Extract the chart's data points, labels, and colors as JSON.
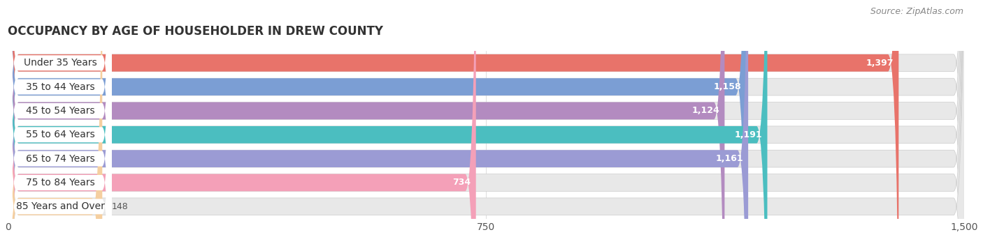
{
  "title": "OCCUPANCY BY AGE OF HOUSEHOLDER IN DREW COUNTY",
  "source": "Source: ZipAtlas.com",
  "categories": [
    "Under 35 Years",
    "35 to 44 Years",
    "45 to 54 Years",
    "55 to 64 Years",
    "65 to 74 Years",
    "75 to 84 Years",
    "85 Years and Over"
  ],
  "values": [
    1397,
    1158,
    1124,
    1191,
    1161,
    734,
    148
  ],
  "bar_colors": [
    "#E8736A",
    "#7B9ED4",
    "#B38BC0",
    "#4BBEC0",
    "#9B9BD4",
    "#F4A0B8",
    "#F5CFA0"
  ],
  "bar_bg_color": "#E8E8E8",
  "bar_border_color": "#DDDDDD",
  "xlim": [
    0,
    1500
  ],
  "xticks": [
    0,
    750,
    1500
  ],
  "background_color": "#FFFFFF",
  "title_fontsize": 12,
  "label_fontsize": 10,
  "value_fontsize": 9,
  "source_fontsize": 9
}
